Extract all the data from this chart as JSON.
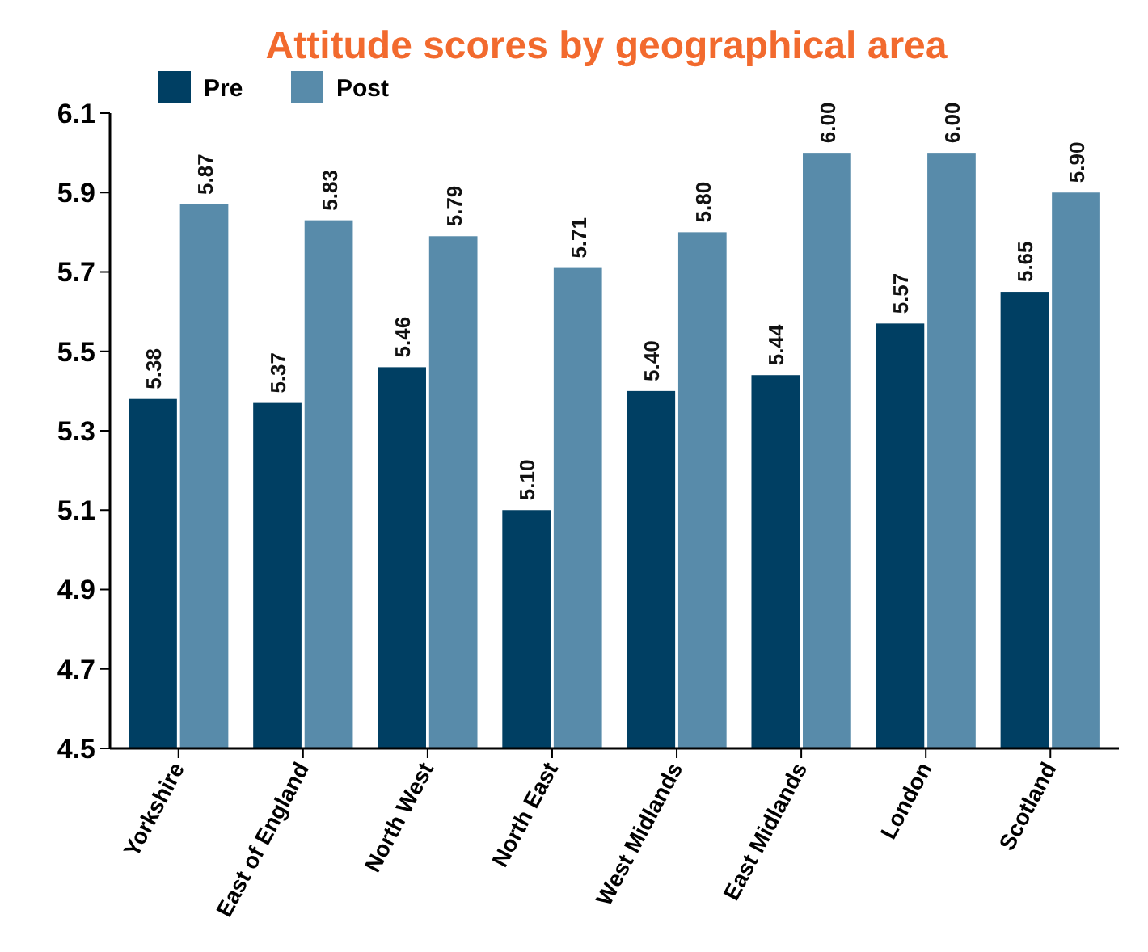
{
  "chart_data": {
    "type": "bar",
    "title": "Attitude scores by geographical area",
    "categories": [
      "Yorkshire",
      "East of England",
      "North West",
      "North East",
      "West Midlands",
      "East Midlands",
      "London",
      "Scotland"
    ],
    "series": [
      {
        "name": "Pre",
        "color": "#003f63",
        "values": [
          5.38,
          5.37,
          5.46,
          5.1,
          5.4,
          5.44,
          5.57,
          5.65
        ],
        "value_labels": [
          "5.38",
          "5.37",
          "5.46",
          "5.10",
          "5.40",
          "5.44",
          "5.57",
          "5.65"
        ]
      },
      {
        "name": "Post",
        "color": "#588baa",
        "values": [
          5.87,
          5.83,
          5.79,
          5.71,
          5.8,
          6.0,
          6.0,
          5.9
        ],
        "value_labels": [
          "5.87",
          "5.83",
          "5.79",
          "5.71",
          "5.80",
          "6.00",
          "6.00",
          "5.90"
        ]
      }
    ],
    "ylim": [
      4.5,
      6.1
    ],
    "yticks": [
      4.5,
      4.7,
      4.9,
      5.1,
      5.3,
      5.5,
      5.7,
      5.9,
      6.1
    ],
    "legend": "top left",
    "grid": false
  }
}
